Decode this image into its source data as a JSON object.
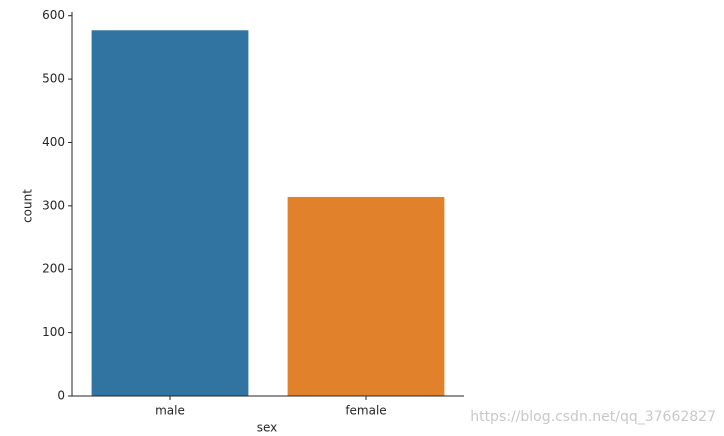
{
  "chart_data": {
    "type": "bar",
    "categories": [
      "male",
      "female"
    ],
    "values": [
      577,
      314
    ],
    "colors": [
      "#3274a1",
      "#e1812c"
    ],
    "xlabel": "sex",
    "ylabel": "count",
    "ylim": [
      0,
      605.85
    ],
    "yticks": [
      0,
      100,
      200,
      300,
      400,
      500,
      600
    ],
    "grid": false
  },
  "watermark": "https://blog.csdn.net/qq_37662827"
}
